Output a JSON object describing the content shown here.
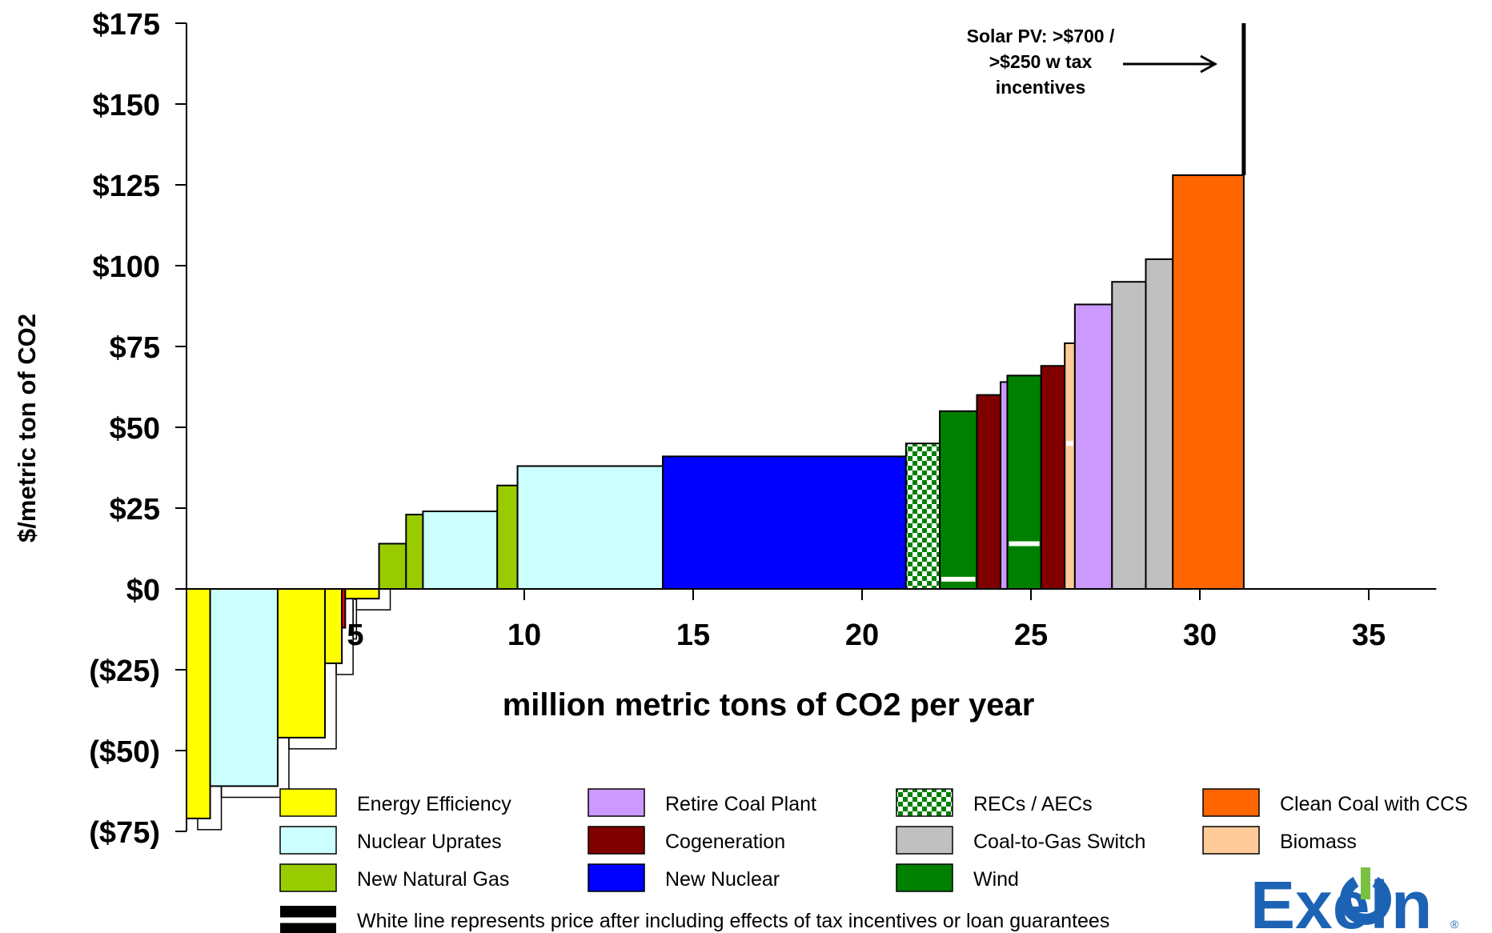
{
  "chart_data": {
    "type": "bar",
    "subtype": "marginal-abatement-cost-curve",
    "xlabel": "million metric tons of CO2 per year",
    "ylabel": "$/metric ton of CO2",
    "xlim": [
      0,
      37
    ],
    "ylim": [
      -75,
      175
    ],
    "x_ticks": [
      5,
      10,
      15,
      20,
      25,
      30,
      35
    ],
    "x_tick_labels": [
      "5",
      "10",
      "15",
      "20",
      "25",
      "30",
      "35"
    ],
    "y_ticks": [
      175,
      150,
      125,
      100,
      75,
      50,
      25,
      0,
      -25,
      -50,
      -75
    ],
    "y_tick_labels": [
      "$175",
      "$150",
      "$125",
      "$100",
      "$75",
      "$50",
      "$25",
      "$0",
      "($25)",
      "($50)",
      "($75)"
    ],
    "colors": {
      "energy_efficiency": "#ffff00",
      "nuclear_uprates": "#ccffff",
      "new_natural_gas": "#99cc00",
      "retire_coal_plant": "#cc99ff",
      "cogeneration": "#800000",
      "new_nuclear": "#0000ff",
      "recs_aecs": "#008000",
      "coal_to_gas_switch": "#c0c0c0",
      "wind": "#008000",
      "clean_coal_ccs": "#ff6600",
      "biomass": "#ffcc99",
      "red_sliver": "#ff0000"
    },
    "bars": [
      {
        "category": "energy_efficiency",
        "x0": 0.0,
        "x1": 0.7,
        "value": -71
      },
      {
        "category": "nuclear_uprates",
        "x0": 0.7,
        "x1": 2.7,
        "value": -61
      },
      {
        "category": "energy_efficiency",
        "x0": 2.7,
        "x1": 4.1,
        "value": -46
      },
      {
        "category": "energy_efficiency",
        "x0": 4.1,
        "x1": 4.6,
        "value": -23
      },
      {
        "category": "red_sliver",
        "x0": 4.6,
        "x1": 4.7,
        "value": -12
      },
      {
        "category": "energy_efficiency",
        "x0": 4.7,
        "x1": 5.7,
        "value": -3
      },
      {
        "category": "new_natural_gas",
        "x0": 5.7,
        "x1": 6.5,
        "value": 14
      },
      {
        "category": "new_natural_gas",
        "x0": 6.5,
        "x1": 7.0,
        "value": 23
      },
      {
        "category": "nuclear_uprates",
        "x0": 7.0,
        "x1": 9.2,
        "value": 24
      },
      {
        "category": "new_natural_gas",
        "x0": 9.2,
        "x1": 9.8,
        "value": 32
      },
      {
        "category": "nuclear_uprates",
        "x0": 9.8,
        "x1": 14.1,
        "value": 38
      },
      {
        "category": "new_nuclear",
        "x0": 14.1,
        "x1": 21.3,
        "value": 41
      },
      {
        "category": "recs_aecs",
        "x0": 21.3,
        "x1": 22.3,
        "value": 45
      },
      {
        "category": "wind",
        "x0": 22.3,
        "x1": 23.4,
        "value": 55,
        "after_incentive": 3
      },
      {
        "category": "cogeneration",
        "x0": 23.4,
        "x1": 24.1,
        "value": 60
      },
      {
        "category": "retire_coal_plant",
        "x0": 24.1,
        "x1": 24.3,
        "value": 64
      },
      {
        "category": "wind",
        "x0": 24.3,
        "x1": 25.3,
        "value": 66,
        "after_incentive": 14
      },
      {
        "category": "cogeneration",
        "x0": 25.3,
        "x1": 26.0,
        "value": 69
      },
      {
        "category": "biomass",
        "x0": 26.0,
        "x1": 26.3,
        "value": 76,
        "after_incentive": 45
      },
      {
        "category": "retire_coal_plant",
        "x0": 26.3,
        "x1": 27.4,
        "value": 88
      },
      {
        "category": "coal_to_gas_switch",
        "x0": 27.4,
        "x1": 28.4,
        "value": 95
      },
      {
        "category": "coal_to_gas_switch",
        "x0": 28.4,
        "x1": 29.2,
        "value": 102
      },
      {
        "category": "clean_coal_ccs",
        "x0": 29.2,
        "x1": 31.3,
        "value": 128
      }
    ],
    "solar_pv": {
      "x": 31.3,
      "value": 175
    },
    "annotation": {
      "lines": [
        "Solar PV: >$700 /",
        ">$250 w tax",
        "incentives"
      ]
    },
    "legend": {
      "placement": "bottom",
      "items": [
        {
          "label": "Energy Efficiency",
          "category": "energy_efficiency"
        },
        {
          "label": "Nuclear Uprates",
          "category": "nuclear_uprates"
        },
        {
          "label": "New Natural Gas",
          "category": "new_natural_gas"
        },
        {
          "label": "Retire Coal Plant",
          "category": "retire_coal_plant"
        },
        {
          "label": "Cogeneration",
          "category": "cogeneration"
        },
        {
          "label": "New Nuclear",
          "category": "new_nuclear"
        },
        {
          "label": "RECs / AECs",
          "category": "recs_aecs"
        },
        {
          "label": "Coal-to-Gas Switch",
          "category": "coal_to_gas_switch"
        },
        {
          "label": "Wind",
          "category": "wind"
        },
        {
          "label": "Clean Coal with CCS",
          "category": "clean_coal_ccs"
        },
        {
          "label": "Biomass",
          "category": "biomass"
        }
      ],
      "white_line_note": "White line represents price after including effects of tax incentives or loan guarantees"
    }
  },
  "logo": {
    "text_before": "Exel",
    "text_after": "n",
    "registered": "®",
    "color": "#1d63b5",
    "icon": "power-symbol-icon"
  }
}
